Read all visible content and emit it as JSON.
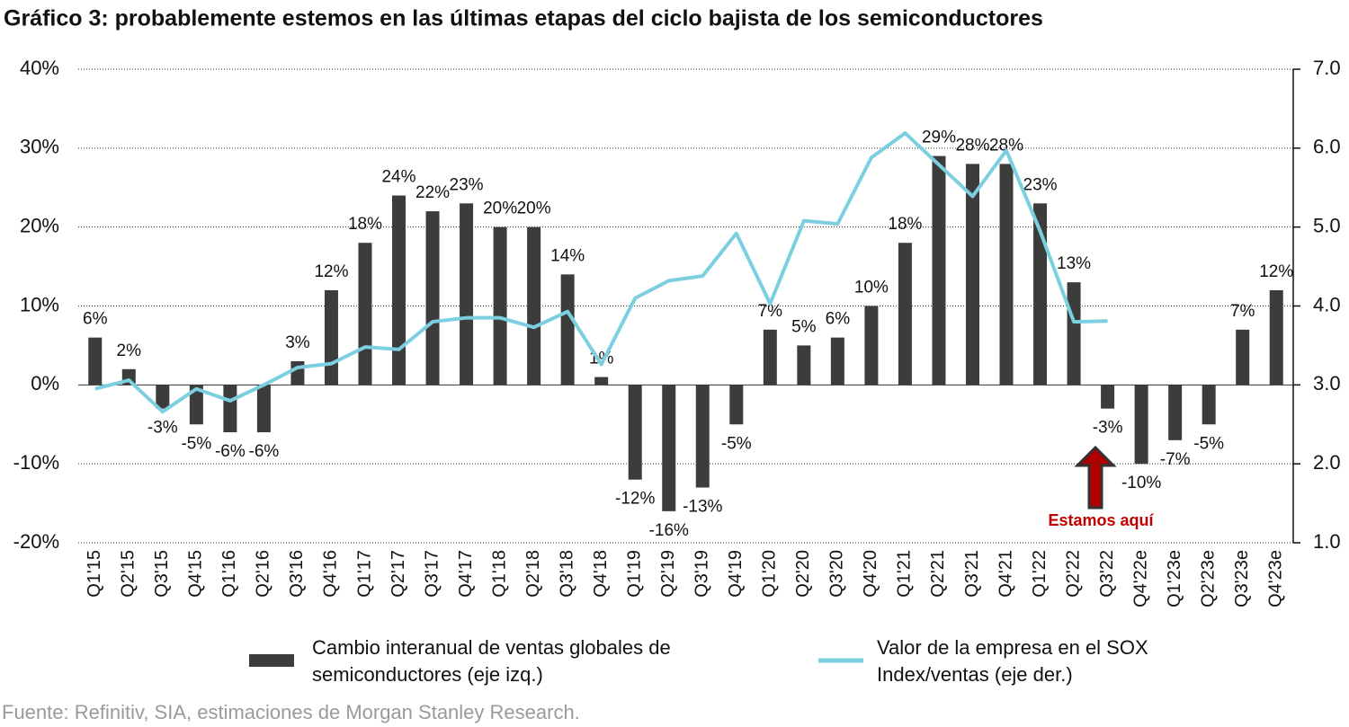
{
  "chart_data": {
    "type": "bar_line",
    "title": "Gráfico 3: probablemente estemos en las últimas etapas del ciclo bajista de los semiconductores",
    "categories": [
      "Q1'15",
      "Q2'15",
      "Q3'15",
      "Q4'15",
      "Q1'16",
      "Q2'16",
      "Q3'16",
      "Q4'16",
      "Q1'17",
      "Q2'17",
      "Q3'17",
      "Q4'17",
      "Q1'18",
      "Q2'18",
      "Q3'18",
      "Q4'18",
      "Q1'19",
      "Q2'19",
      "Q3'19",
      "Q4'19",
      "Q1'20",
      "Q2'20",
      "Q3'20",
      "Q4'20",
      "Q1'21",
      "Q2'21",
      "Q3'21",
      "Q4'21",
      "Q1'22",
      "Q2'22",
      "Q3'22",
      "Q4'22e",
      "Q1'23e",
      "Q2'23e",
      "Q3'23e",
      "Q4'23e"
    ],
    "series": [
      {
        "name": "Cambio interanual de ventas globales de semiconductores (eje izq.)",
        "type": "bar",
        "color": "#3c3c3c",
        "values": [
          6,
          2,
          -3,
          -5,
          -6,
          -6,
          3,
          12,
          18,
          24,
          22,
          23,
          20,
          20,
          14,
          1,
          -12,
          -16,
          -13,
          -5,
          7,
          5,
          6,
          10,
          18,
          29,
          28,
          28,
          23,
          13,
          -3,
          -10,
          -7,
          -5,
          7,
          12
        ],
        "value_labels": [
          "6%",
          "2%",
          "-3%",
          "-5%",
          "-6%",
          "-6%",
          "3%",
          "12%",
          "18%",
          "24%",
          "22%",
          "23%",
          "20%",
          "20%",
          "14%",
          "1%",
          "-12%",
          "-16%",
          "-13%",
          "-5%",
          "7%",
          "5%",
          "6%",
          "10%",
          "18%",
          "29%",
          "28%",
          "28%",
          "23%",
          "13%",
          "-3%",
          "-10%",
          "-7%",
          "-5%",
          "7%",
          "12%"
        ]
      },
      {
        "name": "Valor de la empresa en el SOX Index/ventas (eje der.)",
        "type": "line",
        "axis": "y2",
        "color": "#7ccfe0",
        "values": [
          2.95,
          3.06,
          2.66,
          2.95,
          2.8,
          3.0,
          3.22,
          3.27,
          3.48,
          3.45,
          3.8,
          3.85,
          3.85,
          3.73,
          3.93,
          3.26,
          4.1,
          4.32,
          4.38,
          4.92,
          4.03,
          5.08,
          5.04,
          5.88,
          6.19,
          5.79,
          5.39,
          5.97,
          4.95,
          3.8,
          3.81,
          null,
          null,
          null,
          null,
          null
        ]
      }
    ],
    "ylim": [
      -20,
      40
    ],
    "yticks": [
      {
        "value": -20,
        "label": "-20%"
      },
      {
        "value": -10,
        "label": "-10%"
      },
      {
        "value": 0,
        "label": "0%"
      },
      {
        "value": 10,
        "label": "10%"
      },
      {
        "value": 20,
        "label": "20%"
      },
      {
        "value": 30,
        "label": "30%"
      },
      {
        "value": 40,
        "label": "40%"
      }
    ],
    "y2lim": [
      1,
      7
    ],
    "y2ticks": [
      {
        "value": 1,
        "label": "1.0"
      },
      {
        "value": 2,
        "label": "2.0"
      },
      {
        "value": 3,
        "label": "3.0"
      },
      {
        "value": 4,
        "label": "4.0"
      },
      {
        "value": 5,
        "label": "5.0"
      },
      {
        "value": 6,
        "label": "6.0"
      },
      {
        "value": 7,
        "label": "7.0"
      }
    ],
    "grid": true,
    "annotation": "Estamos aquí",
    "source": "Fuente: Refinitiv, SIA, estimaciones de Morgan Stanley Research."
  }
}
